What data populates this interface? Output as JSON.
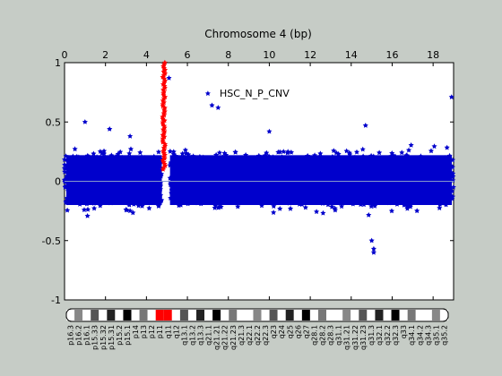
{
  "chart_data": {
    "type": "scatter",
    "title": "Chromosome 4 (bp)",
    "annotation": "HSC_N_P_CNV",
    "xlim": [
      0,
      19
    ],
    "ylim": [
      -1,
      1
    ],
    "x_ticks": [
      "0",
      "2",
      "4",
      "6",
      "8",
      "10",
      "12",
      "14",
      "16",
      "18"
    ],
    "y_ticks": [
      "1",
      "0.5",
      "0",
      "-0.5",
      "-1"
    ],
    "y_tick_values": [
      1,
      0.5,
      0,
      -0.5,
      -1
    ],
    "x_tick_values": [
      0,
      2,
      4,
      6,
      8,
      10,
      12,
      14,
      16,
      18
    ],
    "series": [
      {
        "color": "#0000cc",
        "band_lower": -0.3,
        "band_upper": 0.32,
        "highlighted_points": [
          {
            "x": 5.1,
            "y": 0.87
          },
          {
            "x": 7.0,
            "y": 0.74
          },
          {
            "x": 7.2,
            "y": 0.64
          },
          {
            "x": 7.5,
            "y": 0.62
          },
          {
            "x": 18.9,
            "y": 0.71
          },
          {
            "x": 3.2,
            "y": 0.38
          },
          {
            "x": 1.0,
            "y": 0.5
          },
          {
            "x": 15.1,
            "y": -0.57
          },
          {
            "x": 15.1,
            "y": -0.6
          },
          {
            "x": 15.0,
            "y": -0.5
          },
          {
            "x": 2.2,
            "y": 0.44
          },
          {
            "x": 10.0,
            "y": 0.42
          },
          {
            "x": 14.7,
            "y": 0.47
          }
        ]
      },
      {
        "color": "#ff0000",
        "x": 4.85,
        "y_range": [
          0.1,
          1.0
        ]
      }
    ],
    "zero_line_color": "#8899cc"
  },
  "ideogram": {
    "bands": [
      "p16.3",
      "p16.2",
      "p16.1",
      "p15.33",
      "p15.32",
      "p15.31",
      "p15.2",
      "p15.1",
      "p14",
      "p13",
      "p12",
      "p11",
      "q11",
      "q12",
      "q13.1",
      "q13.2",
      "q13.3",
      "q21.1",
      "q21.21",
      "q21.22",
      "q21.23",
      "q21.3",
      "q22.1",
      "q22.2",
      "q22.3",
      "q23",
      "q24",
      "q25",
      "q26",
      "q27",
      "q28.1",
      "q28.2",
      "q28.3",
      "q31.1",
      "q31.21",
      "q31.22",
      "q31.23",
      "q31.3",
      "q32.1",
      "q32.2",
      "q32.3",
      "q33",
      "q34.1",
      "q34.2",
      "q34.3",
      "q35.1",
      "q35.2"
    ],
    "labels": [
      "p16.3",
      "p16.2",
      "p16.1",
      "p15.33",
      "p15.32",
      "p15.31",
      "p15.2",
      "p15.1",
      "p14",
      "p13",
      "p12",
      "p11",
      "q11",
      "q12",
      "q13.1",
      "q13.2",
      "q13.3",
      "q21.1",
      "q21.21",
      "q21.22",
      "q21.23",
      "q21.3",
      "q22.1",
      "q22.2",
      "q22.3",
      "q23",
      "q24",
      "q25",
      "q26",
      "q27",
      "q28.1",
      "q28.2",
      "q28.3",
      "q31.1",
      "q31.21",
      "q31.22",
      "q31.23",
      "q31.3",
      "q32.1",
      "q32.2",
      "q32.3",
      "q33",
      "q34.1",
      "q34.2",
      "q34.3",
      "q35.1",
      "q35.2"
    ]
  }
}
